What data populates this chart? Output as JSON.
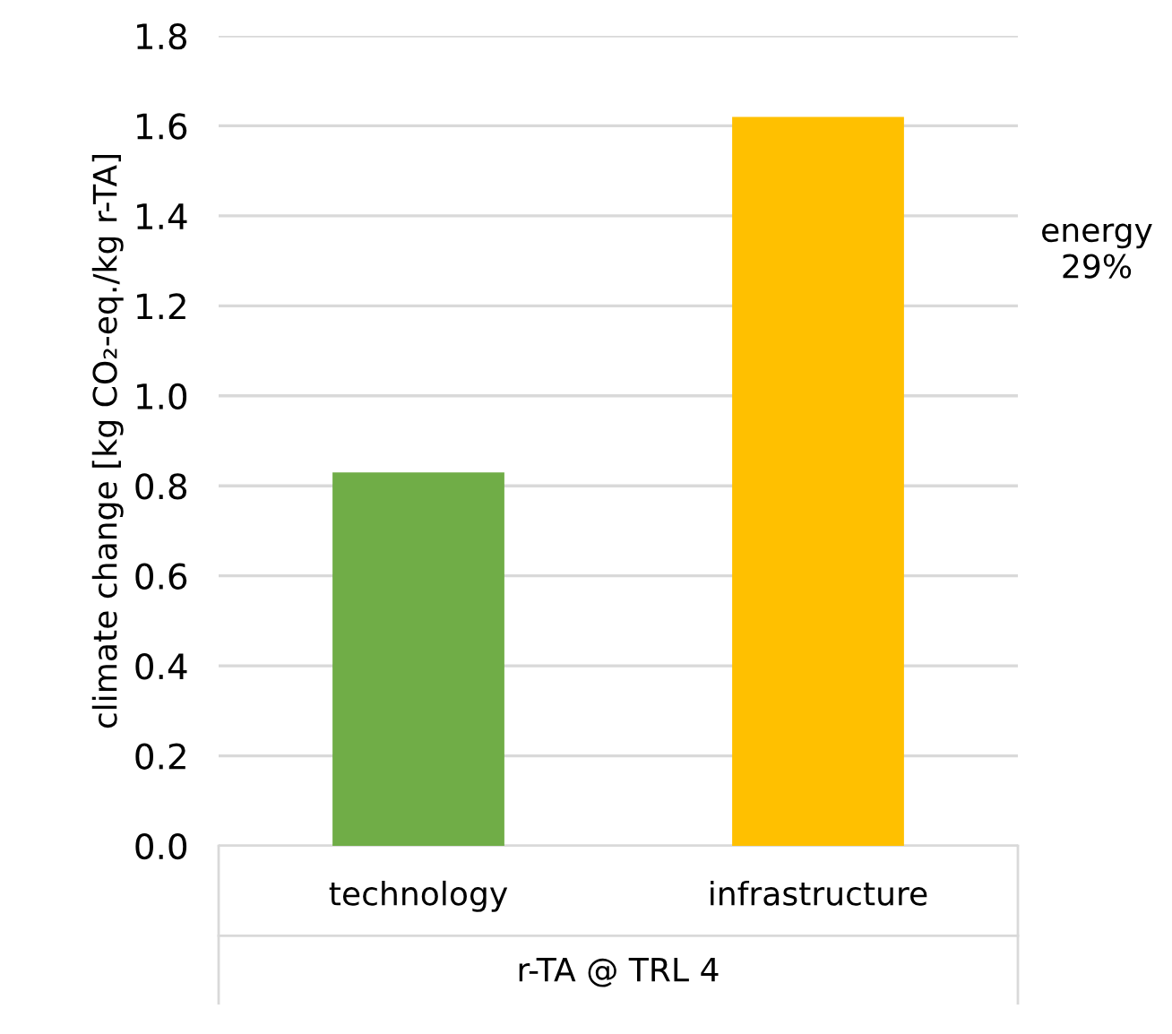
{
  "chart_data": {
    "type": "bar",
    "ylabel": "climate change [kg CO₂-eq./kg r-TA]",
    "xlabel": "r-TA @ TRL 4",
    "categories": [
      "technology",
      "infrastructure"
    ],
    "values": [
      0.83,
      1.62
    ],
    "colors": [
      "#70ad47",
      "#ffc000"
    ],
    "ylim": [
      0,
      1.8
    ],
    "yticks": [
      {
        "value": 0,
        "label": "0.0"
      },
      0.2,
      0.4,
      0.6,
      0.8,
      {
        "value": 1,
        "label": "1.0"
      },
      1.2,
      1.4,
      1.6,
      1.8
    ],
    "grid": "y",
    "annotations": [
      "energy\n29%"
    ]
  }
}
